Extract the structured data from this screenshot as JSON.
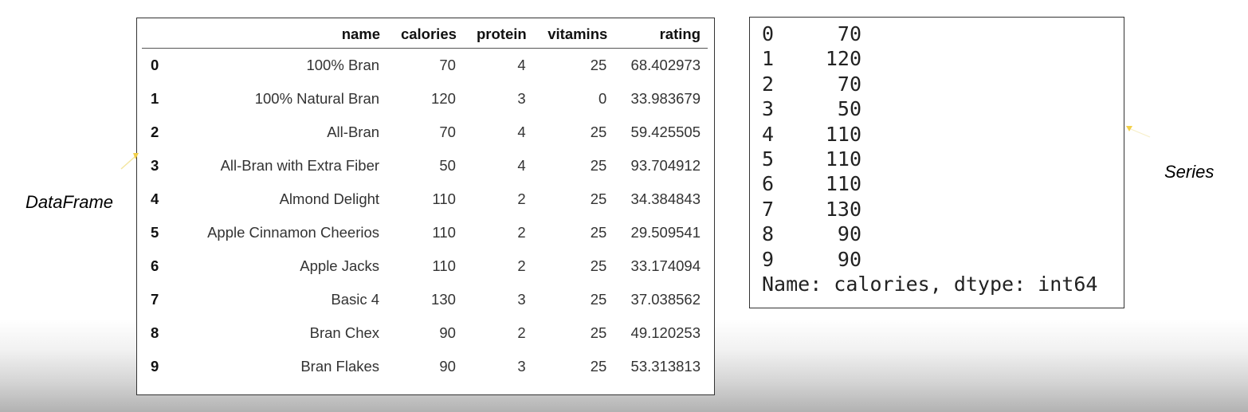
{
  "dataframe": {
    "label": "DataFrame",
    "columns": [
      "name",
      "calories",
      "protein",
      "vitamins",
      "rating"
    ],
    "rows": [
      {
        "index": "0",
        "cells": [
          "100% Bran",
          "70",
          "4",
          "25",
          "68.402973"
        ]
      },
      {
        "index": "1",
        "cells": [
          "100% Natural Bran",
          "120",
          "3",
          "0",
          "33.983679"
        ]
      },
      {
        "index": "2",
        "cells": [
          "All-Bran",
          "70",
          "4",
          "25",
          "59.425505"
        ]
      },
      {
        "index": "3",
        "cells": [
          "All-Bran with Extra Fiber",
          "50",
          "4",
          "25",
          "93.704912"
        ]
      },
      {
        "index": "4",
        "cells": [
          "Almond Delight",
          "110",
          "2",
          "25",
          "34.384843"
        ]
      },
      {
        "index": "5",
        "cells": [
          "Apple Cinnamon Cheerios",
          "110",
          "2",
          "25",
          "29.509541"
        ]
      },
      {
        "index": "6",
        "cells": [
          "Apple Jacks",
          "110",
          "2",
          "25",
          "33.174094"
        ]
      },
      {
        "index": "7",
        "cells": [
          "Basic 4",
          "130",
          "3",
          "25",
          "37.038562"
        ]
      },
      {
        "index": "8",
        "cells": [
          "Bran Chex",
          "90",
          "2",
          "25",
          "49.120253"
        ]
      },
      {
        "index": "9",
        "cells": [
          "Bran Flakes",
          "90",
          "3",
          "25",
          "53.313813"
        ]
      }
    ]
  },
  "series": {
    "label": "Series",
    "entries": [
      {
        "index": "0",
        "value": "70"
      },
      {
        "index": "1",
        "value": "120"
      },
      {
        "index": "2",
        "value": "70"
      },
      {
        "index": "3",
        "value": "50"
      },
      {
        "index": "4",
        "value": "110"
      },
      {
        "index": "5",
        "value": "110"
      },
      {
        "index": "6",
        "value": "110"
      },
      {
        "index": "7",
        "value": "130"
      },
      {
        "index": "8",
        "value": "90"
      },
      {
        "index": "9",
        "value": "90"
      }
    ],
    "footer": "Name: calories, dtype: int64"
  },
  "colors": {
    "arrow": "#f2d04a"
  }
}
